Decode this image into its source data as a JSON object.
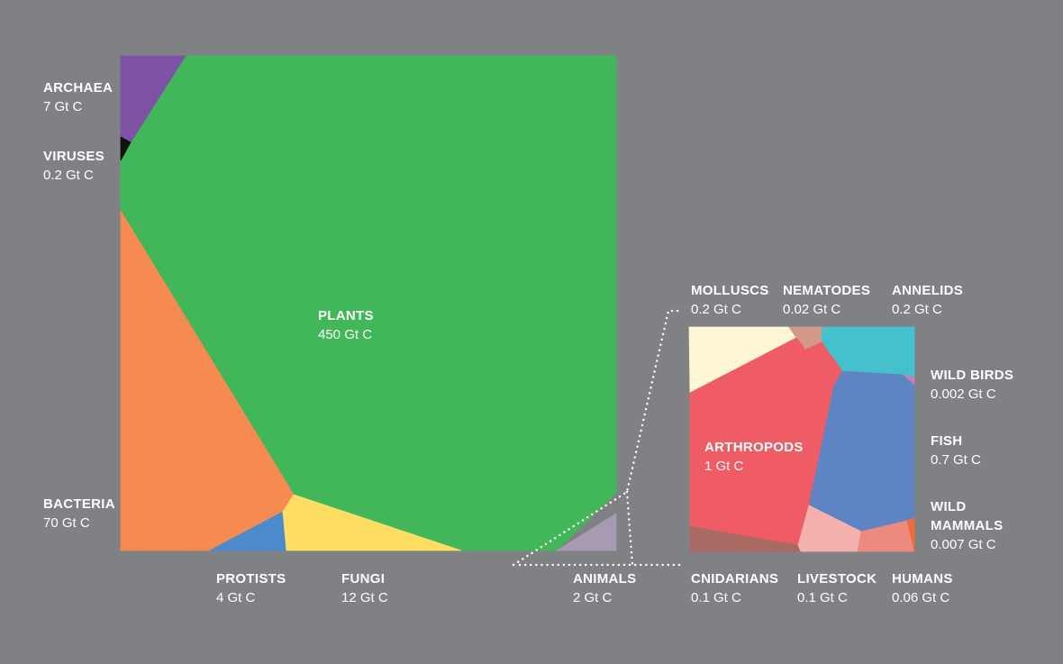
{
  "main_groups": [
    {
      "key": "plants",
      "name": "PLANTS",
      "value": "450 Gt C",
      "color": "#41b75a"
    },
    {
      "key": "bacteria",
      "name": "BACTERIA",
      "value": "70 Gt C",
      "color": "#f58b50"
    },
    {
      "key": "fungi",
      "name": "FUNGI",
      "value": "12 Gt C",
      "color": "#fddd62"
    },
    {
      "key": "archaea",
      "name": "ARCHAEA",
      "value": "7 Gt C",
      "color": "#7e52a4"
    },
    {
      "key": "protists",
      "name": "PROTISTS",
      "value": "4 Gt C",
      "color": "#4b8bcc"
    },
    {
      "key": "animals",
      "name": "ANIMALS",
      "value": "2 Gt C",
      "color": "#a69bb2"
    },
    {
      "key": "viruses",
      "name": "VIRUSES",
      "value": "0.2 Gt C",
      "color": "#111111"
    }
  ],
  "animal_groups": [
    {
      "key": "arthropods",
      "name": "ARTHROPODS",
      "value": "1 Gt C",
      "color": "#ef5c66"
    },
    {
      "key": "fish",
      "name": "FISH",
      "value": "0.7 Gt C",
      "color": "#5f84c4"
    },
    {
      "key": "molluscs",
      "name": "MOLLUSCS",
      "value": "0.2 Gt C",
      "color": "#fdf7d6"
    },
    {
      "key": "annelids",
      "name": "ANNELIDS",
      "value": "0.2 Gt C",
      "color": "#45c0cd"
    },
    {
      "key": "cnidarians",
      "name": "CNIDARIANS",
      "value": "0.1 Gt C",
      "color": "#a86a62"
    },
    {
      "key": "livestock",
      "name": "LIVESTOCK",
      "value": "0.1 Gt C",
      "color": "#f4b1ae"
    },
    {
      "key": "humans",
      "name": "HUMANS",
      "value": "0.06 Gt C",
      "color": "#ec8a7f"
    },
    {
      "key": "nematodes",
      "name": "NEMATODES",
      "value": "0.02 Gt C",
      "color": "#d4998b"
    },
    {
      "key": "wild_mammals",
      "name": "WILD MAMMALS",
      "value": "0.007 Gt C",
      "color": "#f06b3a"
    },
    {
      "key": "wild_birds",
      "name": "WILD BIRDS",
      "value": "0.002 Gt C",
      "color": "#c780b4"
    }
  ],
  "colors": {
    "background": "#808184",
    "connector": "#ffffff"
  }
}
